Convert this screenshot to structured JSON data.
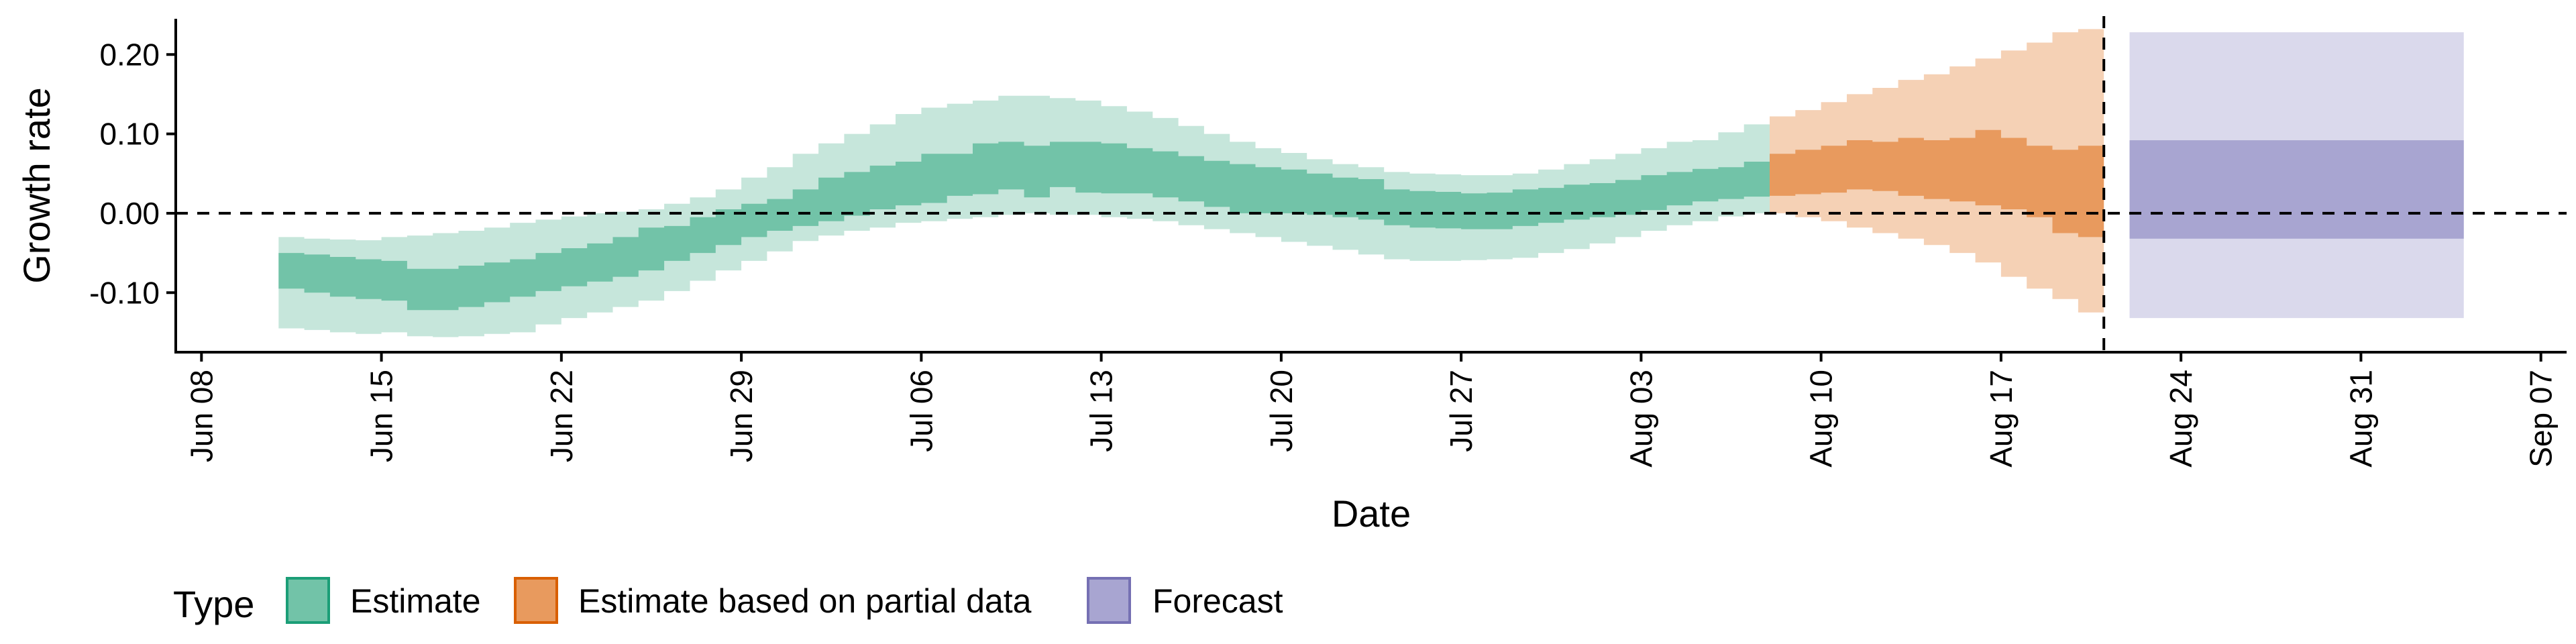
{
  "chart_data": {
    "type": "area",
    "xlabel": "Date",
    "ylabel": "Growth rate",
    "xlim": [
      "2020-06-07",
      "2020-09-08"
    ],
    "ylim": [
      -0.175,
      0.245
    ],
    "x_ticks": [
      "2020-06-08",
      "2020-06-15",
      "2020-06-22",
      "2020-06-29",
      "2020-07-06",
      "2020-07-13",
      "2020-07-20",
      "2020-07-27",
      "2020-08-03",
      "2020-08-10",
      "2020-08-17",
      "2020-08-24",
      "2020-08-31",
      "2020-09-07"
    ],
    "x_tick_labels": [
      "Jun 08",
      "Jun 15",
      "Jun 22",
      "Jun 29",
      "Jul 06",
      "Jul 13",
      "Jul 20",
      "Jul 27",
      "Aug 03",
      "Aug 10",
      "Aug 17",
      "Aug 24",
      "Aug 31",
      "Sep 07"
    ],
    "y_ticks": [
      -0.1,
      0.0,
      0.1,
      0.2
    ],
    "y_tick_labels": [
      "-0.10",
      "0.00",
      "0.10",
      "0.20"
    ],
    "reference_lines": {
      "horizontal_y": 0.0,
      "vertical_date": "2020-08-21"
    },
    "grid": false,
    "legend": {
      "title": "Type",
      "position": "bottom-left",
      "items": [
        "Estimate",
        "Estimate based on partial data",
        "Forecast"
      ]
    },
    "series": [
      {
        "name": "Estimate",
        "color": "#72C3A8",
        "outer_color": "#C6E6DB",
        "x": [
          "2020-06-12",
          "2020-06-13",
          "2020-06-14",
          "2020-06-15",
          "2020-06-16",
          "2020-06-17",
          "2020-06-18",
          "2020-06-19",
          "2020-06-20",
          "2020-06-21",
          "2020-06-22",
          "2020-06-23",
          "2020-06-24",
          "2020-06-25",
          "2020-06-26",
          "2020-06-27",
          "2020-06-28",
          "2020-06-29",
          "2020-06-30",
          "2020-07-01",
          "2020-07-02",
          "2020-07-03",
          "2020-07-04",
          "2020-07-05",
          "2020-07-06",
          "2020-07-07",
          "2020-07-08",
          "2020-07-09",
          "2020-07-10",
          "2020-07-11",
          "2020-07-12",
          "2020-07-13",
          "2020-07-14",
          "2020-07-15",
          "2020-07-16",
          "2020-07-17",
          "2020-07-18",
          "2020-07-19",
          "2020-07-20",
          "2020-07-21",
          "2020-07-22",
          "2020-07-23",
          "2020-07-24",
          "2020-07-25",
          "2020-07-26",
          "2020-07-27",
          "2020-07-28",
          "2020-07-29",
          "2020-07-30",
          "2020-07-31",
          "2020-08-01",
          "2020-08-02",
          "2020-08-03",
          "2020-08-04",
          "2020-08-05",
          "2020-08-06",
          "2020-08-07",
          "2020-08-08"
        ],
        "lower_90": [
          -0.145,
          -0.147,
          -0.15,
          -0.152,
          -0.15,
          -0.155,
          -0.156,
          -0.155,
          -0.152,
          -0.15,
          -0.14,
          -0.132,
          -0.125,
          -0.118,
          -0.11,
          -0.098,
          -0.085,
          -0.072,
          -0.06,
          -0.048,
          -0.035,
          -0.028,
          -0.022,
          -0.018,
          -0.012,
          -0.01,
          -0.007,
          -0.005,
          -0.002,
          0.0,
          -0.002,
          -0.002,
          -0.005,
          -0.007,
          -0.01,
          -0.015,
          -0.02,
          -0.025,
          -0.03,
          -0.036,
          -0.041,
          -0.046,
          -0.052,
          -0.058,
          -0.06,
          -0.06,
          -0.059,
          -0.058,
          -0.056,
          -0.05,
          -0.045,
          -0.038,
          -0.03,
          -0.022,
          -0.015,
          -0.01,
          -0.004,
          0.0
        ],
        "lower_50": [
          -0.095,
          -0.1,
          -0.105,
          -0.108,
          -0.11,
          -0.122,
          -0.122,
          -0.118,
          -0.112,
          -0.105,
          -0.098,
          -0.092,
          -0.086,
          -0.08,
          -0.072,
          -0.06,
          -0.05,
          -0.04,
          -0.03,
          -0.022,
          -0.016,
          -0.01,
          -0.003,
          0.005,
          0.01,
          0.013,
          0.022,
          0.024,
          0.03,
          0.02,
          0.033,
          0.026,
          0.025,
          0.025,
          0.02,
          0.015,
          0.008,
          0.0,
          0.0,
          0.0,
          -0.002,
          -0.005,
          -0.008,
          -0.015,
          -0.018,
          -0.019,
          -0.02,
          -0.02,
          -0.016,
          -0.012,
          -0.008,
          -0.005,
          -0.002,
          0.004,
          0.01,
          0.015,
          0.018,
          0.021
        ],
        "upper_50": [
          -0.05,
          -0.052,
          -0.055,
          -0.058,
          -0.06,
          -0.07,
          -0.07,
          -0.066,
          -0.062,
          -0.058,
          -0.05,
          -0.044,
          -0.038,
          -0.03,
          -0.018,
          -0.016,
          -0.005,
          0.005,
          0.012,
          0.018,
          0.03,
          0.045,
          0.052,
          0.06,
          0.065,
          0.075,
          0.075,
          0.088,
          0.09,
          0.085,
          0.09,
          0.09,
          0.088,
          0.082,
          0.078,
          0.072,
          0.066,
          0.062,
          0.058,
          0.055,
          0.05,
          0.045,
          0.043,
          0.03,
          0.028,
          0.027,
          0.025,
          0.026,
          0.03,
          0.032,
          0.036,
          0.038,
          0.042,
          0.048,
          0.052,
          0.056,
          0.058,
          0.065
        ],
        "upper_90": [
          -0.03,
          -0.032,
          -0.033,
          -0.034,
          -0.03,
          -0.028,
          -0.025,
          -0.022,
          -0.018,
          -0.012,
          -0.008,
          -0.004,
          0.0,
          0.002,
          0.005,
          0.012,
          0.02,
          0.03,
          0.045,
          0.058,
          0.075,
          0.088,
          0.1,
          0.112,
          0.125,
          0.133,
          0.138,
          0.142,
          0.148,
          0.148,
          0.145,
          0.142,
          0.135,
          0.128,
          0.12,
          0.11,
          0.1,
          0.09,
          0.082,
          0.076,
          0.068,
          0.062,
          0.058,
          0.052,
          0.05,
          0.049,
          0.048,
          0.048,
          0.05,
          0.055,
          0.062,
          0.068,
          0.075,
          0.082,
          0.09,
          0.092,
          0.102,
          0.112
        ]
      },
      {
        "name": "Estimate based on partial data",
        "color": "#E89A5E",
        "outer_color": "#F5D1B5",
        "x": [
          "2020-08-09",
          "2020-08-10",
          "2020-08-11",
          "2020-08-12",
          "2020-08-13",
          "2020-08-14",
          "2020-08-15",
          "2020-08-16",
          "2020-08-17",
          "2020-08-18",
          "2020-08-19",
          "2020-08-20",
          "2020-08-21"
        ],
        "lower_90": [
          0.0,
          -0.005,
          -0.01,
          -0.018,
          -0.025,
          -0.032,
          -0.04,
          -0.05,
          -0.062,
          -0.08,
          -0.095,
          -0.108,
          -0.125
        ],
        "lower_50": [
          0.022,
          0.024,
          0.026,
          0.03,
          0.028,
          0.022,
          0.018,
          0.015,
          0.01,
          0.005,
          -0.005,
          -0.025,
          -0.03
        ],
        "upper_50": [
          0.075,
          0.08,
          0.085,
          0.092,
          0.09,
          0.095,
          0.092,
          0.095,
          0.105,
          0.095,
          0.085,
          0.08,
          0.085
        ],
        "upper_90": [
          0.122,
          0.13,
          0.14,
          0.15,
          0.158,
          0.168,
          0.175,
          0.185,
          0.195,
          0.205,
          0.215,
          0.228,
          0.232
        ]
      },
      {
        "name": "Forecast",
        "color": "#A8A5D1",
        "outer_color": "#DAD9EC",
        "x": [
          "2020-08-22",
          "2020-09-04"
        ],
        "lower_90": [
          -0.132,
          -0.132
        ],
        "lower_50": [
          -0.032,
          -0.032
        ],
        "upper_50": [
          0.092,
          0.092
        ],
        "upper_90": [
          0.228,
          0.228
        ]
      }
    ]
  }
}
